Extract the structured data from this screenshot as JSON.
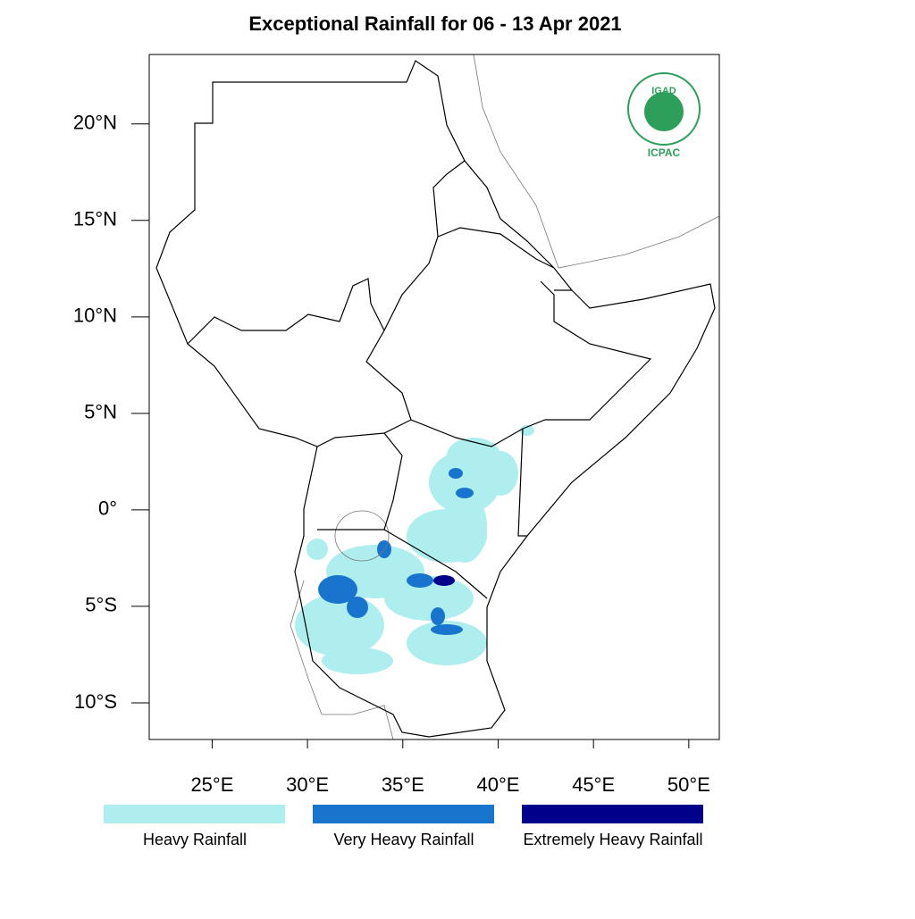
{
  "chart_data": {
    "type": "map",
    "title": "Exceptional Rainfall for 06 - 13 Apr 2021",
    "xlim": [
      21.7,
      51.6
    ],
    "ylim": [
      -11.9,
      23.6
    ],
    "xticks": [
      {
        "value": 25,
        "label": "25°E"
      },
      {
        "value": 30,
        "label": "30°E"
      },
      {
        "value": 35,
        "label": "35°E"
      },
      {
        "value": 40,
        "label": "40°E"
      },
      {
        "value": 45,
        "label": "45°E"
      },
      {
        "value": 50,
        "label": "50°E"
      }
    ],
    "yticks": [
      {
        "value": 20,
        "label": "20°N"
      },
      {
        "value": 15,
        "label": "15°N"
      },
      {
        "value": 10,
        "label": "10°N"
      },
      {
        "value": 5,
        "label": "5°N"
      },
      {
        "value": 0,
        "label": "0°"
      },
      {
        "value": -5,
        "label": "5°S"
      },
      {
        "value": -10,
        "label": "10°S"
      }
    ],
    "legend": [
      {
        "label": "Heavy Rainfall",
        "color": "#aeeeee"
      },
      {
        "label": "Very Heavy Rainfall",
        "color": "#1874cd"
      },
      {
        "label": "Extremely Heavy Rainfall",
        "color": "#00008b"
      }
    ],
    "logo": {
      "top": "IGAD",
      "bottom": "ICPAC"
    }
  }
}
